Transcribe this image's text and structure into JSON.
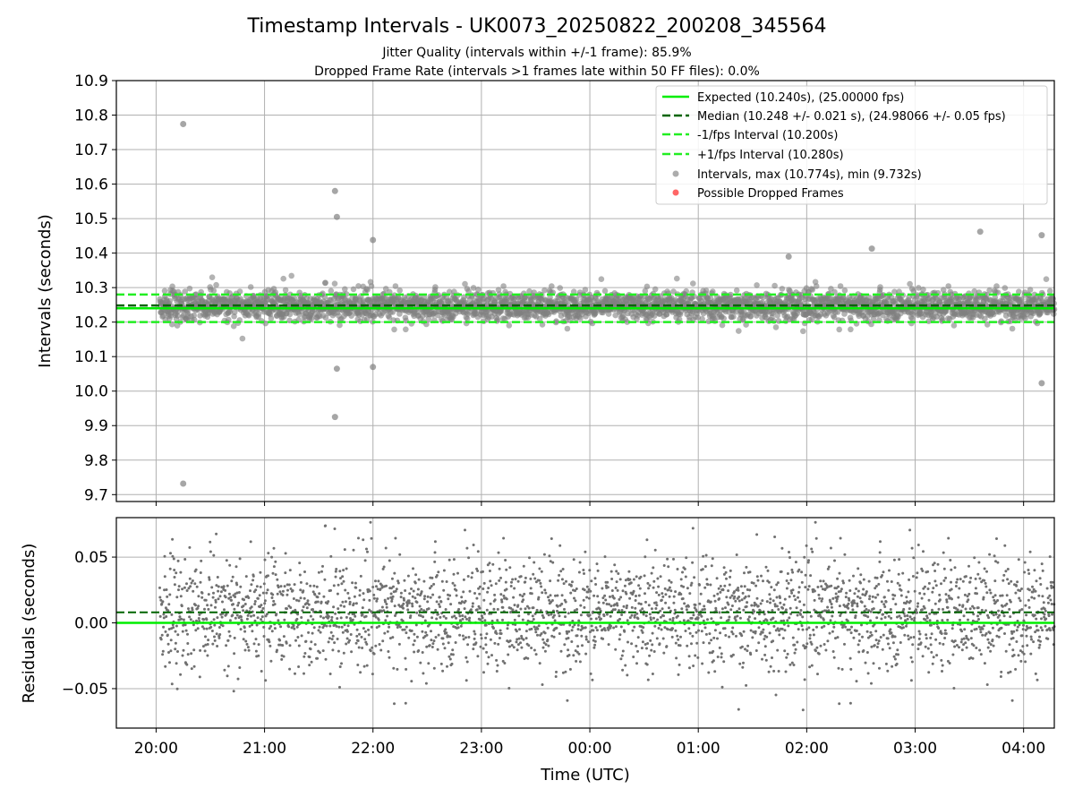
{
  "figure": {
    "title": "Timestamp Intervals - UK0073_20250822_200208_345564",
    "subtitle_1": "Jitter Quality (intervals within +/-1 frame): 85.9%",
    "subtitle_2": "Dropped Frame Rate (intervals >1 frames late within 50 FF files): 0.0%"
  },
  "colors": {
    "expected": "#00ee00",
    "median": "#006400",
    "interval": "#22ee22",
    "points": "#808080",
    "dropped": "#ff0000",
    "grid": "#b0b0b0"
  },
  "chart_data": [
    {
      "type": "scatter",
      "ylabel": "Intervals (seconds)",
      "ylim": [
        9.68,
        10.9
      ],
      "yticks": [
        "9.7",
        "9.8",
        "9.9",
        "10.0",
        "10.1",
        "10.2",
        "10.3",
        "10.4",
        "10.5",
        "10.6",
        "10.7",
        "10.8",
        "10.9"
      ],
      "grid": true,
      "legend_position": "top-right",
      "legend": [
        "Expected (10.240s), (25.00000 fps)",
        "Median (10.248 +/- 0.021 s), (24.98066 +/- 0.05 fps)",
        "-1/fps Interval (10.200s)",
        "+1/fps Interval (10.280s)",
        "Intervals, max (10.774s), min (9.732s)",
        "Possible Dropped Frames"
      ],
      "lines": {
        "expected": 10.24,
        "median": 10.248,
        "minus_1fps": 10.2,
        "plus_1fps": 10.28
      },
      "max_interval": 10.774,
      "min_interval": 9.732,
      "notable_points": [
        {
          "x": "20:15",
          "y": 10.774
        },
        {
          "x": "20:15",
          "y": 9.732
        },
        {
          "x": "21:39",
          "y": 10.58
        },
        {
          "x": "21:40",
          "y": 10.505
        },
        {
          "x": "21:39",
          "y": 9.925
        },
        {
          "x": "22:00",
          "y": 10.438
        },
        {
          "x": "21:40",
          "y": 10.065
        },
        {
          "x": "22:00",
          "y": 10.07
        },
        {
          "x": "03:36",
          "y": 10.462
        },
        {
          "x": "04:10",
          "y": 10.452
        },
        {
          "x": "04:10",
          "y": 10.023
        },
        {
          "x": "02:36",
          "y": 10.413
        },
        {
          "x": "01:50",
          "y": 10.39
        }
      ],
      "dropped_frames": []
    },
    {
      "type": "scatter",
      "ylabel": "Residuals (seconds)",
      "xlabel": "Time (UTC)",
      "ylim": [
        -0.08,
        0.08
      ],
      "yticks": [
        "−0.05",
        "0.00",
        "0.05"
      ],
      "xticks": [
        "20:00",
        "21:00",
        "22:00",
        "23:00",
        "00:00",
        "01:00",
        "02:00",
        "03:00",
        "04:00"
      ],
      "xlim": [
        "19:38",
        "04:17"
      ],
      "data_start": "20:02",
      "data_end": "04:17",
      "grid": true,
      "lines": {
        "expected": 0.0,
        "median": 0.008
      }
    }
  ]
}
